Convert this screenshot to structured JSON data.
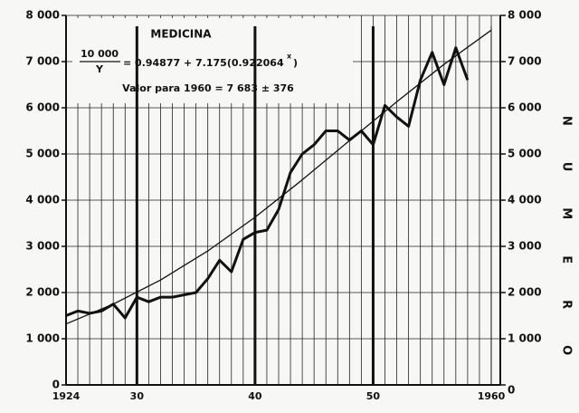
{
  "chart_data": {
    "type": "line",
    "title": "MEDICINA",
    "formula_numerator": "10 000",
    "formula_denominator": "Y",
    "formula_rhs": "= 0.94877 + 7.175(0.922064",
    "formula_exponent": "x",
    "formula_close": ")",
    "annotation": "Valor para 1960 = 7 683 ± 376",
    "y2_label": "NUMERO",
    "grid": true,
    "xlim": [
      1924,
      1960
    ],
    "xticks": [
      {
        "value": 1924,
        "label": "1924"
      },
      {
        "value": 1930,
        "label": "30"
      },
      {
        "value": 1940,
        "label": "40"
      },
      {
        "value": 1950,
        "label": "50"
      },
      {
        "value": 1960,
        "label": "1960"
      }
    ],
    "ylim": [
      0,
      8000
    ],
    "yticks": [
      0,
      {
        "value": 1000,
        "label": "1 000"
      },
      {
        "value": 2000,
        "label": "2 000"
      },
      {
        "value": 3000,
        "label": "3 000"
      },
      {
        "value": 4000,
        "label": "4 000"
      },
      {
        "value": 5000,
        "label": "5 000"
      },
      {
        "value": 6000,
        "label": "6 000"
      },
      {
        "value": 7000,
        "label": "7 000"
      },
      {
        "value": 8000,
        "label": "8 000"
      }
    ],
    "y2lim": [
      0,
      8000
    ],
    "y2ticks": [
      0,
      {
        "value": 1000,
        "label": "1 000"
      },
      {
        "value": 2000,
        "label": "2 000"
      },
      {
        "value": 3000,
        "label": "3 000"
      },
      {
        "value": 4000,
        "label": "4 000"
      },
      {
        "value": 5000,
        "label": "5 000"
      },
      {
        "value": 6000,
        "label": "6 000"
      },
      {
        "value": 7000,
        "label": "7 000"
      },
      {
        "value": 8000,
        "label": "8 000"
      }
    ],
    "series": [
      {
        "color": "#111111",
        "width": 3,
        "x": [
          1924,
          1925,
          1926,
          1927,
          1928,
          1929,
          1930,
          1931,
          1932,
          1933,
          1934,
          1935,
          1936,
          1937,
          1938,
          1939,
          1940,
          1941,
          1942,
          1943,
          1944,
          1945,
          1946,
          1947,
          1948,
          1949,
          1950,
          1951,
          1952,
          1953,
          1954,
          1955,
          1956,
          1957,
          1958
        ],
        "values": [
          1500,
          1600,
          1550,
          1600,
          1750,
          1450,
          1900,
          1800,
          1900,
          1900,
          1950,
          2000,
          2300,
          2700,
          2450,
          3150,
          3300,
          3350,
          3800,
          4600,
          5000,
          5200,
          5500,
          5500,
          5300,
          5500,
          5200,
          6050,
          5800,
          5600,
          6600,
          7200,
          6500,
          7300,
          6600
        ]
      },
      {
        "color": "#111111",
        "width": 1.3,
        "x": [
          1924,
          1928,
          1932,
          1936,
          1940,
          1944,
          1948,
          1952,
          1956,
          1960
        ],
        "values": [
          1320,
          1750,
          2270,
          2900,
          3630,
          4440,
          5290,
          6130,
          6940,
          7680
        ]
      }
    ]
  }
}
